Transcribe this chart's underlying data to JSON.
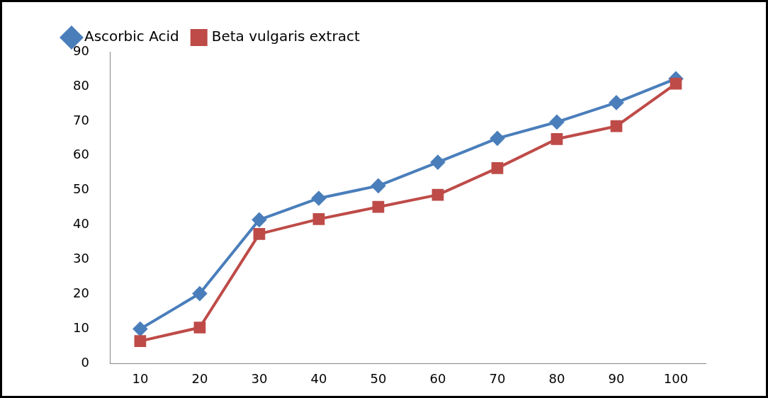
{
  "chart_data": {
    "type": "line",
    "categories": [
      "10",
      "20",
      "30",
      "40",
      "50",
      "60",
      "70",
      "80",
      "90",
      "100"
    ],
    "series": [
      {
        "name": "Ascorbic Acid",
        "color": "#4a7ebb",
        "marker": "diamond",
        "values": [
          10,
          20.2,
          41.5,
          47.7,
          51.3,
          58.1,
          65,
          69.7,
          75.3,
          82.2
        ]
      },
      {
        "name": "Beta vulgaris extract",
        "color": "#be4b48",
        "marker": "square",
        "values": [
          6.5,
          10.4,
          37.4,
          41.7,
          45.2,
          48.7,
          56.4,
          64.8,
          68.5,
          80.8
        ]
      }
    ],
    "ylim": [
      0,
      90
    ],
    "yticks": [
      0,
      10,
      20,
      30,
      40,
      50,
      60,
      70,
      80,
      90
    ],
    "grid": false,
    "legend": "top left",
    "line_style": "solid"
  }
}
